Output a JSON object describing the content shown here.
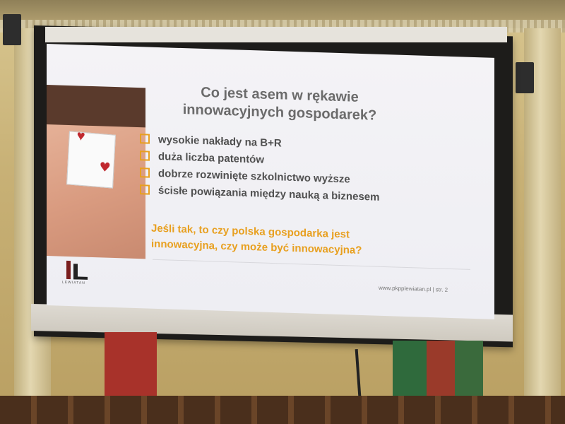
{
  "slide": {
    "title_line1": "Co jest asem w rękawie",
    "title_line2": "innowacyjnych gospodarek?",
    "bullets": [
      "wysokie nakłady na B+R",
      "duża liczba patentów",
      "dobrze rozwinięte szkolnictwo wyższe",
      "ścisłe powiązania między nauką a biznesem"
    ],
    "question_line1": "Jeśli tak, to czy polska gospodarka jest",
    "question_line2": "innowacyjna, czy może być innowacyjna?",
    "logo_text": "LEWIATAN",
    "footer": "www.pkpplewiatan.pl | str. 2",
    "accent_color": "#e8a020",
    "title_color": "#6b6b6b"
  }
}
